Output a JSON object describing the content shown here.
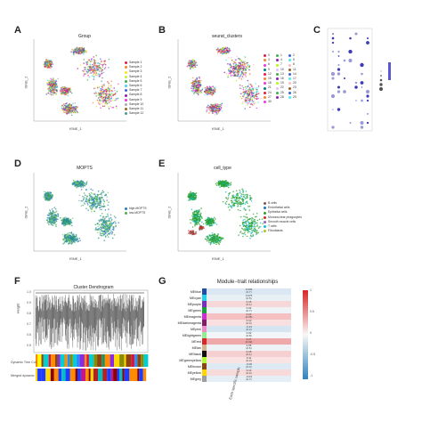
{
  "panels": {
    "A": {
      "label": "A",
      "title": "Group",
      "xlabel": "tSNE_1",
      "ylabel": "tSNE_2",
      "legend": [
        "Sample 1",
        "Sample 2",
        "Sample 3",
        "Sample 4",
        "Sample 5",
        "Sample 6",
        "Sample 7",
        "Sample 8",
        "Sample 9",
        "Sample 10",
        "Sample 11",
        "Sample 12"
      ],
      "colors": [
        "#e6194b",
        "#f58231",
        "#ffe119",
        "#bfef45",
        "#3cb44b",
        "#42d4f4",
        "#4363d8",
        "#911eb4",
        "#f032e6",
        "#a9a9a9",
        "#9A6324",
        "#469990"
      ]
    },
    "B": {
      "label": "B",
      "title": "seurat_clusters",
      "xlabel": "tSNE_1",
      "ylabel": "tSNE_2",
      "clusters": [
        "0",
        "1",
        "2",
        "3",
        "4",
        "5",
        "6",
        "7",
        "8",
        "9",
        "10",
        "11",
        "12",
        "13",
        "14",
        "15",
        "16",
        "17",
        "18",
        "19",
        "20",
        "21",
        "22",
        "23",
        "24",
        "25",
        "26",
        "27",
        "28",
        "29",
        "30"
      ]
    },
    "C": {
      "label": "C"
    },
    "D": {
      "label": "D",
      "title": "MOPTS",
      "xlabel": "tSNE_1",
      "ylabel": "tSNE_2",
      "legend": [
        "high-MOPTS",
        "low-MOPTS"
      ],
      "colors": [
        "#2c7fb8",
        "#4daf4a"
      ]
    },
    "E": {
      "label": "E",
      "title": "cell_type",
      "xlabel": "tSNE_1",
      "ylabel": "tSNE_2",
      "legend": [
        "B cells",
        "Endothelial cells",
        "Epithelial cells",
        "Mononuclear phagocytes",
        "Smooth muscle cells",
        "T cells",
        "Fibroblasts"
      ],
      "colors": [
        "#8c564b",
        "#1f77b4",
        "#2ca02c",
        "#d62728",
        "#9467bd",
        "#17becf",
        "#bcbd22"
      ]
    },
    "F": {
      "label": "F",
      "title": "Cluster Dendrogram",
      "ylabel": "Height",
      "yticks": [
        "1.0",
        "0.9",
        "0.8",
        "0.7",
        "0.6",
        "0.5"
      ],
      "row1": "Dynamic Tree Cut",
      "row2": "Merged dynamic"
    },
    "G": {
      "label": "G",
      "title": "Module−trait relationships",
      "xlabel": "Each specific sample",
      "scale": [
        "1",
        "0.5",
        "0",
        "-0.5",
        "-1"
      ],
      "modules": [
        {
          "name": "MEblue",
          "color": "#1f4ea8",
          "value": "0.036",
          "p": "(0.7)",
          "cell": "#dbe8f3"
        },
        {
          "name": "MEcyan",
          "color": "#22d3e6",
          "value": "0.075",
          "p": "(0.5)",
          "cell": "#e8f0f6"
        },
        {
          "name": "MEpurple",
          "color": "#7b2fbe",
          "value": "0.16",
          "p": "(0.1)",
          "cell": "#f7d8d8"
        },
        {
          "name": "MEgreen",
          "color": "#1a9e3a",
          "value": "0.04",
          "p": "(0.7)",
          "cell": "#eef3f7"
        },
        {
          "name": "MEmagenta",
          "color": "#d12bd6",
          "value": "0.22",
          "p": "(0.05)",
          "cell": "#f4c0c2"
        },
        {
          "name": "MEdarkmagenta",
          "color": "#7c1f6b",
          "value": "0.12",
          "p": "(0.3)",
          "cell": "#f8e0e0"
        },
        {
          "name": "MEpink",
          "color": "#f08cc8",
          "value": "-0.13",
          "p": "(0.2)",
          "cell": "#d5e5f2"
        },
        {
          "name": "MElightgreen",
          "color": "#90ee90",
          "value": "0.02",
          "p": "(0.8)",
          "cell": "#f3f6f8"
        },
        {
          "name": "MEred",
          "color": "#d62728",
          "value": "0.27",
          "p": "(0.02)",
          "cell": "#f0a9ab"
        },
        {
          "name": "MEtan",
          "color": "#d2b48c",
          "value": "0.05",
          "p": "(0.6)",
          "cell": "#eef3f7"
        },
        {
          "name": "MEblack",
          "color": "#111111",
          "value": "0.18",
          "p": "(0.1)",
          "cell": "#f6cfd0"
        },
        {
          "name": "MEgreenyellow",
          "color": "#adff2f",
          "value": "0.11",
          "p": "(0.3)",
          "cell": "#f9e3e3"
        },
        {
          "name": "MEbrown",
          "color": "#8b4513",
          "value": "-0.09",
          "p": "(0.4)",
          "cell": "#dde9f3"
        },
        {
          "name": "MEyellow",
          "color": "#ffd700",
          "value": "0.14",
          "p": "(0.2)",
          "cell": "#f7dada"
        },
        {
          "name": "MEgrey",
          "color": "#9e9e9e",
          "value": "-0.04",
          "p": "(0.7)",
          "cell": "#e6eef5"
        }
      ]
    }
  }
}
